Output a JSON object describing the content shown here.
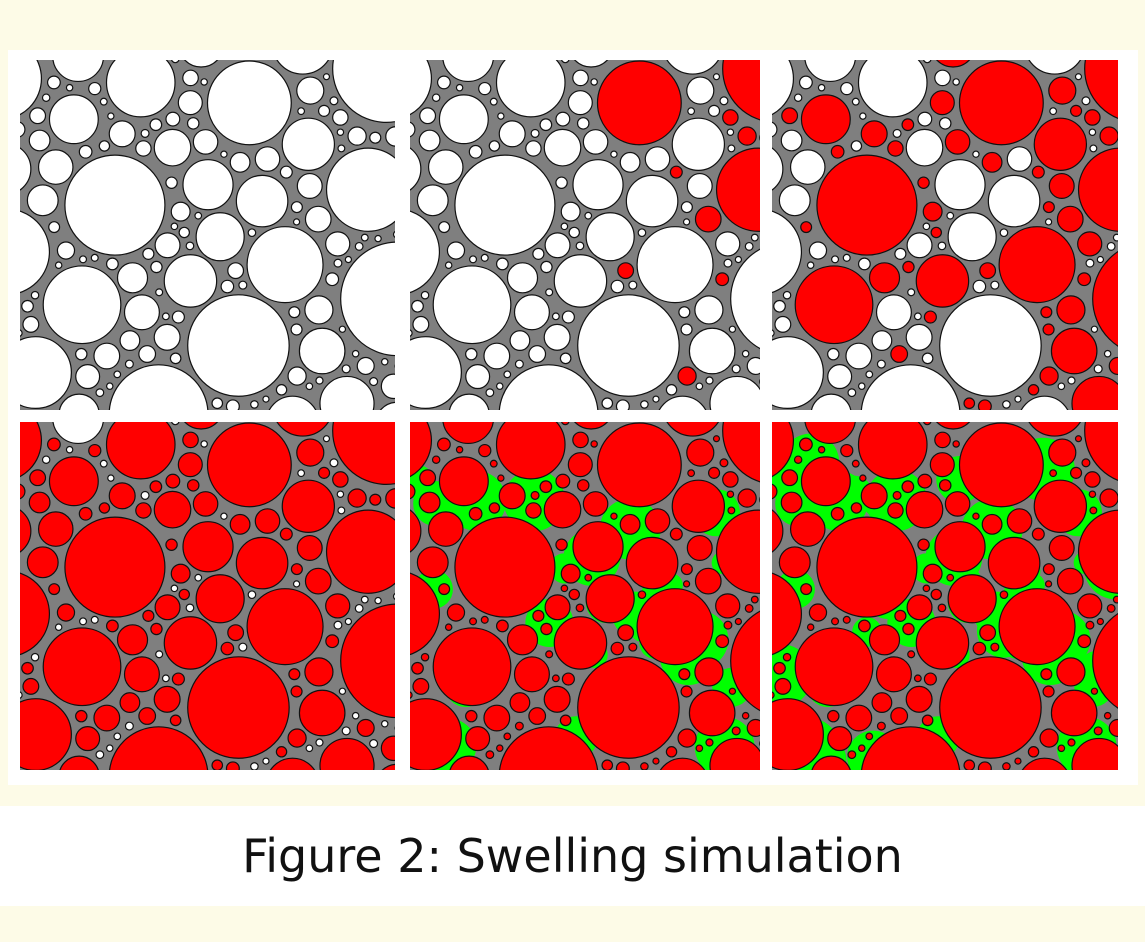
{
  "caption": "Figure 2: Swelling simulation"
}
